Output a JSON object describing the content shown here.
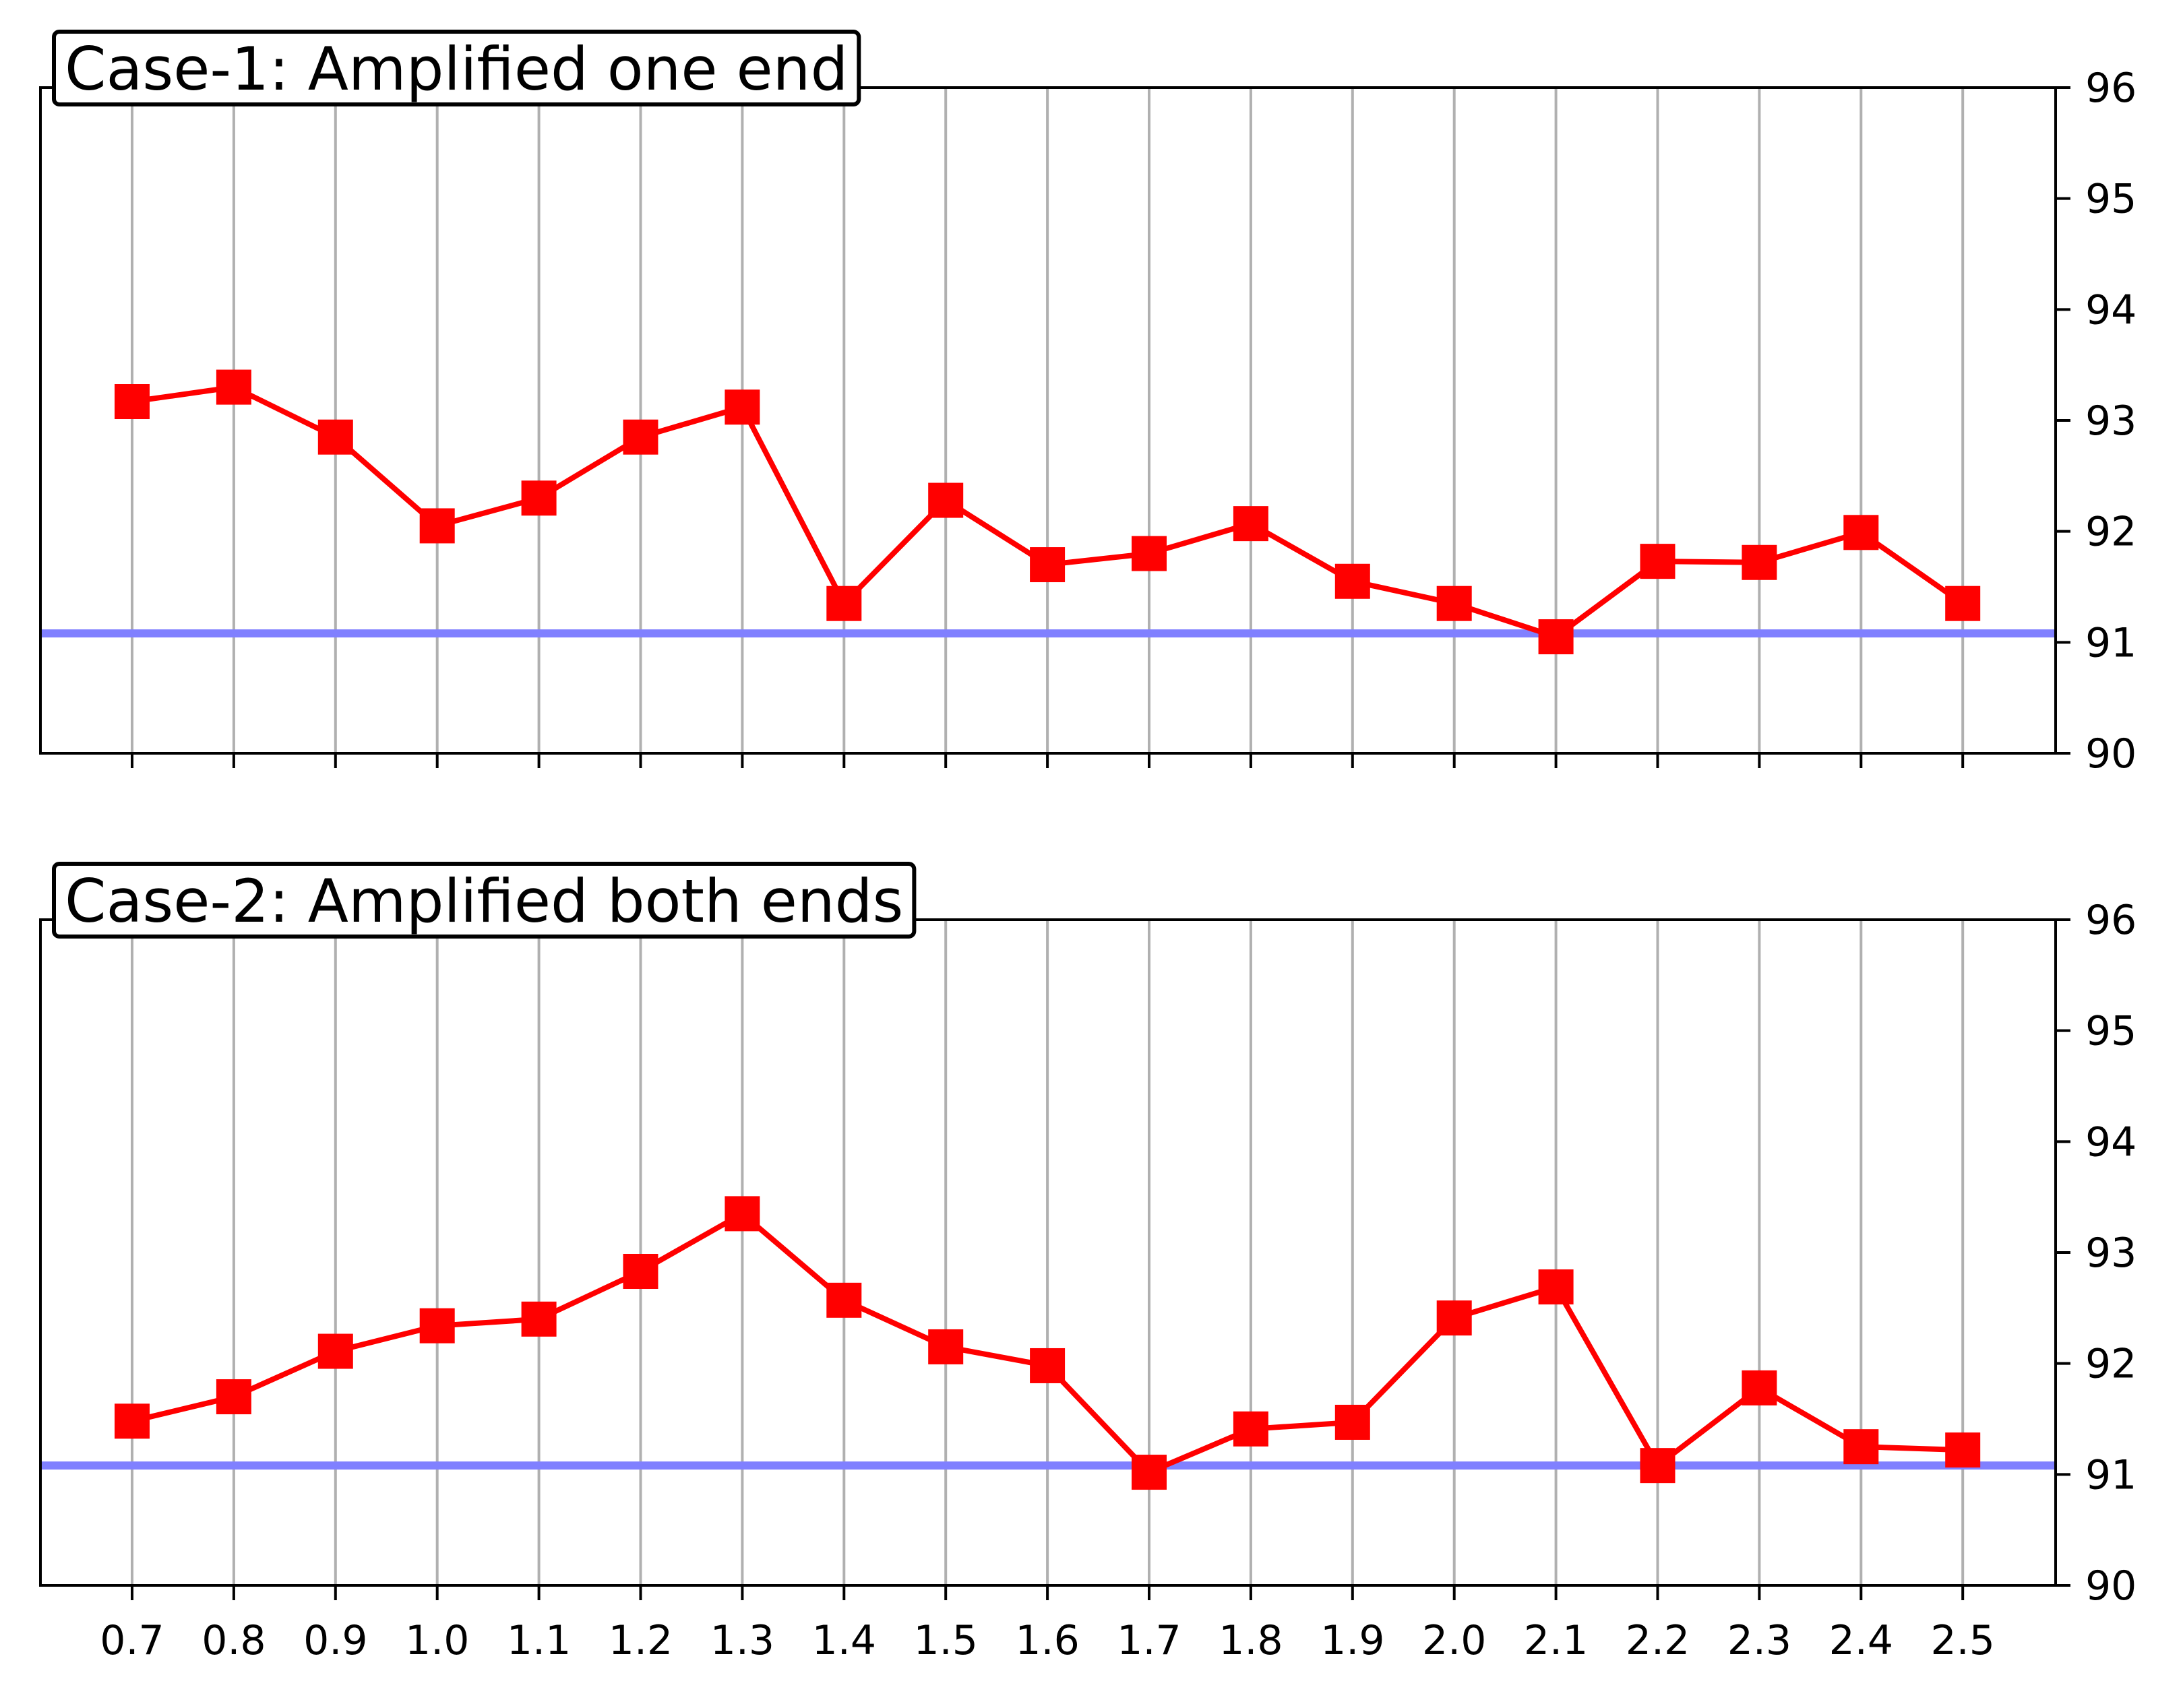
{
  "chart_data": [
    {
      "type": "line",
      "title": "Case-1: Amplified one end",
      "x": [
        0.7,
        0.8,
        0.9,
        1.0,
        1.1,
        1.2,
        1.3,
        1.4,
        1.5,
        1.6,
        1.7,
        1.8,
        1.9,
        2.0,
        2.1,
        2.2,
        2.3,
        2.4,
        2.5
      ],
      "x_tick_labels": [],
      "series": [
        {
          "values": [
            93.17,
            93.3,
            92.85,
            92.05,
            92.3,
            92.85,
            93.12,
            91.35,
            92.28,
            91.7,
            91.8,
            92.07,
            91.55,
            91.35,
            91.05,
            91.73,
            91.72,
            91.99,
            91.35
          ],
          "color": "#ff0000",
          "marker": "square"
        }
      ],
      "reference_line": {
        "y": 91.08,
        "color": "#8080ff"
      },
      "ylim": [
        90,
        96
      ],
      "y_ticks": [
        "90",
        "91",
        "92",
        "93",
        "94",
        "95",
        "96"
      ],
      "y_axis_side": "right",
      "grid": "vertical"
    },
    {
      "type": "line",
      "title": "Case-2: Amplified both ends",
      "x": [
        0.7,
        0.8,
        0.9,
        1.0,
        1.1,
        1.2,
        1.3,
        1.4,
        1.5,
        1.6,
        1.7,
        1.8,
        1.9,
        2.0,
        2.1,
        2.2,
        2.3,
        2.4,
        2.5
      ],
      "x_tick_labels": [
        "0.7",
        "0.8",
        "0.9",
        "1.0",
        "1.1",
        "1.2",
        "1.3",
        "1.4",
        "1.5",
        "1.6",
        "1.7",
        "1.8",
        "1.9",
        "2.0",
        "2.1",
        "2.2",
        "2.3",
        "2.4",
        "2.5"
      ],
      "series": [
        {
          "values": [
            91.48,
            91.7,
            92.11,
            92.34,
            92.4,
            92.83,
            93.35,
            92.57,
            92.15,
            91.98,
            91.02,
            91.41,
            91.47,
            92.41,
            92.69,
            91.08,
            91.78,
            91.25,
            91.22
          ],
          "color": "#ff0000",
          "marker": "square"
        }
      ],
      "reference_line": {
        "y": 91.08,
        "color": "#8080ff"
      },
      "ylim": [
        90,
        96
      ],
      "y_ticks": [
        "90",
        "91",
        "92",
        "93",
        "94",
        "95",
        "96"
      ],
      "y_axis_side": "right",
      "grid": "vertical"
    }
  ]
}
